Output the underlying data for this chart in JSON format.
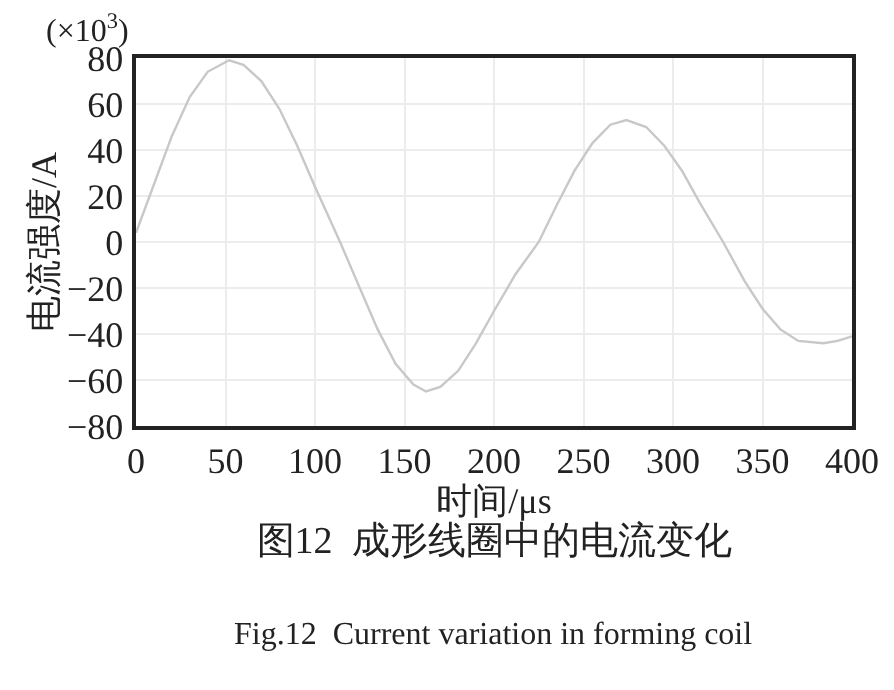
{
  "chart_data": {
    "type": "line",
    "title": "图12  成形线圈中的电流变化",
    "subtitle": "Fig.12  Current variation in forming coil",
    "xlabel": "时间/μs",
    "ylabel": "电流强度/A",
    "annotations": [
      "(×10$^{3}$)"
    ],
    "x": [
      0,
      10,
      20,
      30,
      40,
      52,
      60,
      70,
      80,
      90,
      100,
      114,
      125,
      135,
      145,
      155,
      162,
      170,
      180,
      190,
      200,
      212,
      225,
      235,
      245,
      255,
      265,
      274,
      285,
      295,
      305,
      315,
      328,
      340,
      350,
      360,
      370,
      384,
      392,
      400
    ],
    "series": [
      {
        "color": "#c8c8c8",
        "values": [
          4,
          25,
          46,
          63,
          74,
          79,
          77,
          70,
          58,
          42,
          24,
          0,
          -20,
          -38,
          -53,
          -62,
          -65,
          -63,
          -56,
          -44,
          -30,
          -14,
          0,
          16,
          31,
          43,
          51,
          53,
          50,
          42,
          31,
          17,
          0,
          -17,
          -29,
          -38,
          -43,
          -44,
          -43,
          -41
        ]
      }
    ],
    "xlim": [
      0,
      400
    ],
    "xticks": [
      0,
      50,
      100,
      150,
      200,
      250,
      300,
      350,
      400
    ],
    "ylim": [
      -80,
      80
    ],
    "yticks": [
      -80,
      -60,
      -40,
      -20,
      0,
      20,
      40,
      60,
      80
    ],
    "grid": true,
    "marker": "none",
    "line_style": "solid"
  }
}
